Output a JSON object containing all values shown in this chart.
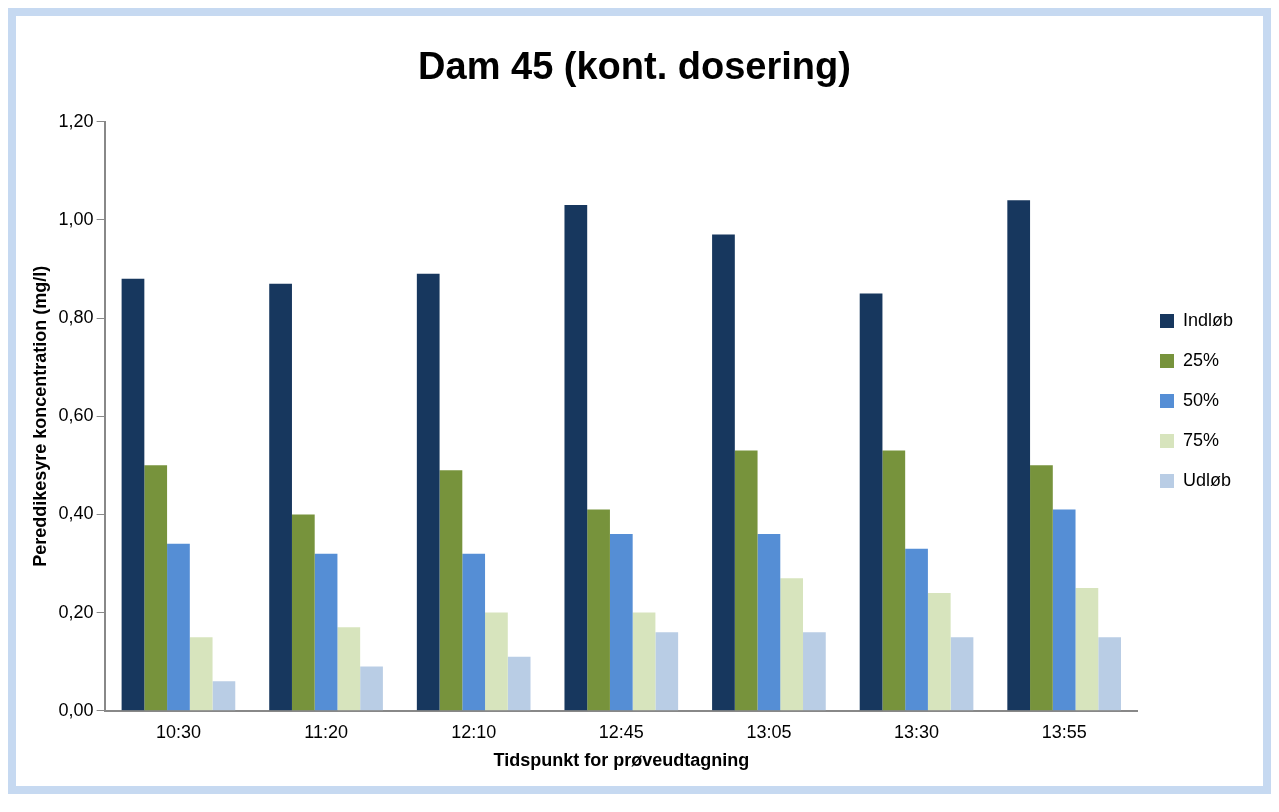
{
  "chart_data": {
    "type": "bar",
    "title": "Dam 45 (kont. dosering)",
    "xlabel": "Tidspunkt for prøveudtagning",
    "ylabel": "Pereddikesyre koncentration (mg/l)",
    "categories": [
      "10:30",
      "11:20",
      "12:10",
      "12:45",
      "13:05",
      "13:30",
      "13:55"
    ],
    "series": [
      {
        "name": "Indløb",
        "color": "#17375e",
        "values": [
          0.88,
          0.87,
          0.89,
          1.03,
          0.97,
          0.85,
          1.04
        ]
      },
      {
        "name": "25%",
        "color": "#77933c",
        "values": [
          0.5,
          0.4,
          0.49,
          0.41,
          0.53,
          0.53,
          0.5
        ]
      },
      {
        "name": "50%",
        "color": "#558ed5",
        "values": [
          0.34,
          0.32,
          0.32,
          0.36,
          0.36,
          0.33,
          0.41
        ]
      },
      {
        "name": "75%",
        "color": "#d7e4bd",
        "values": [
          0.15,
          0.17,
          0.2,
          0.2,
          0.27,
          0.24,
          0.25
        ]
      },
      {
        "name": "Udløb",
        "color": "#b9cde5",
        "values": [
          0.06,
          0.09,
          0.11,
          0.16,
          0.16,
          0.15,
          0.15
        ]
      }
    ],
    "ylim": [
      0,
      1.2
    ],
    "yticks": [
      {
        "value": 0,
        "label": "0,00"
      },
      {
        "value": 0.2,
        "label": "0,20"
      },
      {
        "value": 0.4,
        "label": "0,40"
      },
      {
        "value": 0.6,
        "label": "0,60"
      },
      {
        "value": 0.8,
        "label": "0,80"
      },
      {
        "value": 1,
        "label": "1,00"
      },
      {
        "value": 1.2,
        "label": "1,20"
      }
    ],
    "grid": false,
    "legend": "right"
  }
}
